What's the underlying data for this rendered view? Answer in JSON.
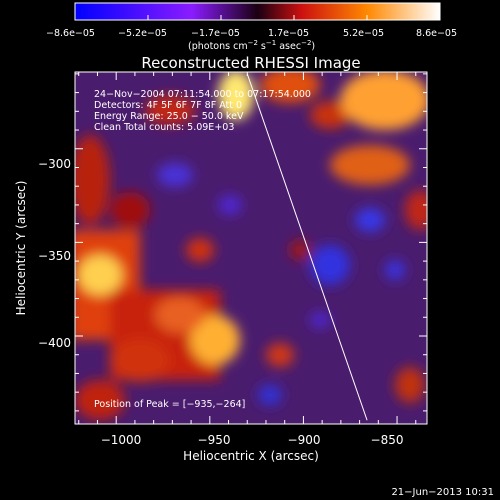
{
  "chart_data": {
    "type": "heatmap",
    "title": "Reconstructed RHESSI Image",
    "xlabel": "Heliocentric X (arcsec)",
    "ylabel": "Heliocentric Y (arcsec)",
    "xlim": [
      -1022,
      -834
    ],
    "ylim": [
      -447,
      -259
    ],
    "x_ticks": [
      -1000,
      -950,
      -900,
      -850
    ],
    "x_tick_labels": [
      "−1000",
      "−950",
      "−900",
      "−850"
    ],
    "y_ticks": [
      -300,
      -350,
      -400
    ],
    "y_tick_labels": [
      "−300",
      "−350",
      "−400"
    ],
    "colorbar": {
      "ticks": [
        "−8.6e−05",
        "−5.2e−05",
        "−1.7e−05",
        "1.7e−05",
        "5.2e−05",
        "8.6e−05"
      ],
      "units_parts": [
        "(photons cm",
        "−2",
        " s",
        "−1",
        " asec",
        "−2",
        ")"
      ],
      "min": -8.6e-05,
      "max": 8.6e-05
    },
    "annotations": {
      "time_range": "24−Nov−2004 07:11:54.000 to 07:17:54.000",
      "detectors": "Detectors: 4F 5F 6F 7F 8F  Att 0",
      "energy_range": "Energy Range: 25.0 − 50.0 keV",
      "algorithm_counts": "Clean    Total counts: 5.09E+03",
      "peak_position": "Position of Peak = [−935,−264]"
    },
    "limb_line": [
      [
        -930,
        -260
      ],
      [
        -866,
        -445
      ]
    ],
    "grid": false,
    "legend": "none"
  },
  "footer": {
    "date": "21−Jun−2013 10:31"
  }
}
